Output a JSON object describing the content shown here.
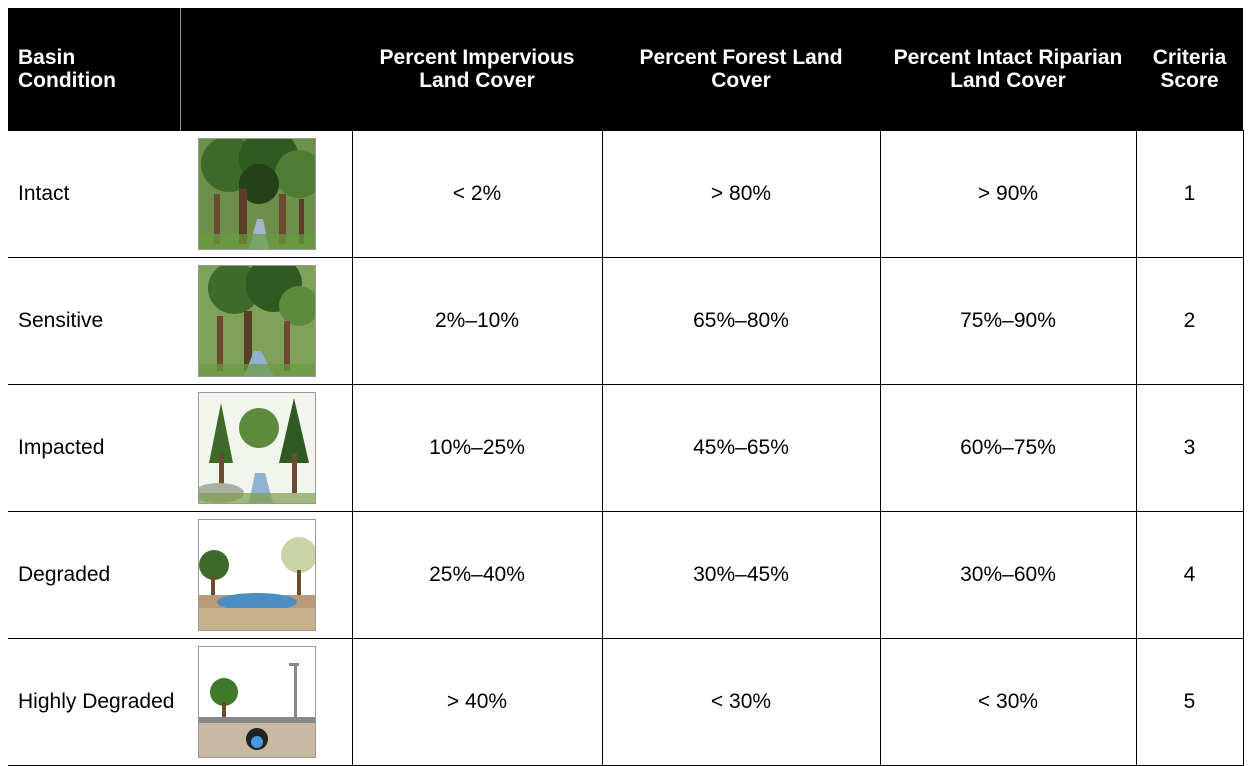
{
  "table": {
    "header": [
      "Basin Condition",
      "Percent Impervious Land Cover",
      "Percent Forest Land Cover",
      "Percent Intact Riparian Land Cover",
      "Criteria Score"
    ],
    "rows": [
      [
        "Intact",
        "< 2%",
        "> 80%",
        "> 90%",
        1
      ],
      [
        "Sensitive",
        "2%–10%",
        "65%–80%",
        "75%–90%",
        2
      ],
      [
        "Impacted",
        "10%–25%",
        "45%–65%",
        "60%–75%",
        3
      ],
      [
        "Degraded",
        "25%–40%",
        "30%–45%",
        "30%–60%",
        4
      ],
      [
        "Highly Degraded",
        "> 40%",
        "< 30%",
        "< 30%",
        5
      ]
    ]
  }
}
